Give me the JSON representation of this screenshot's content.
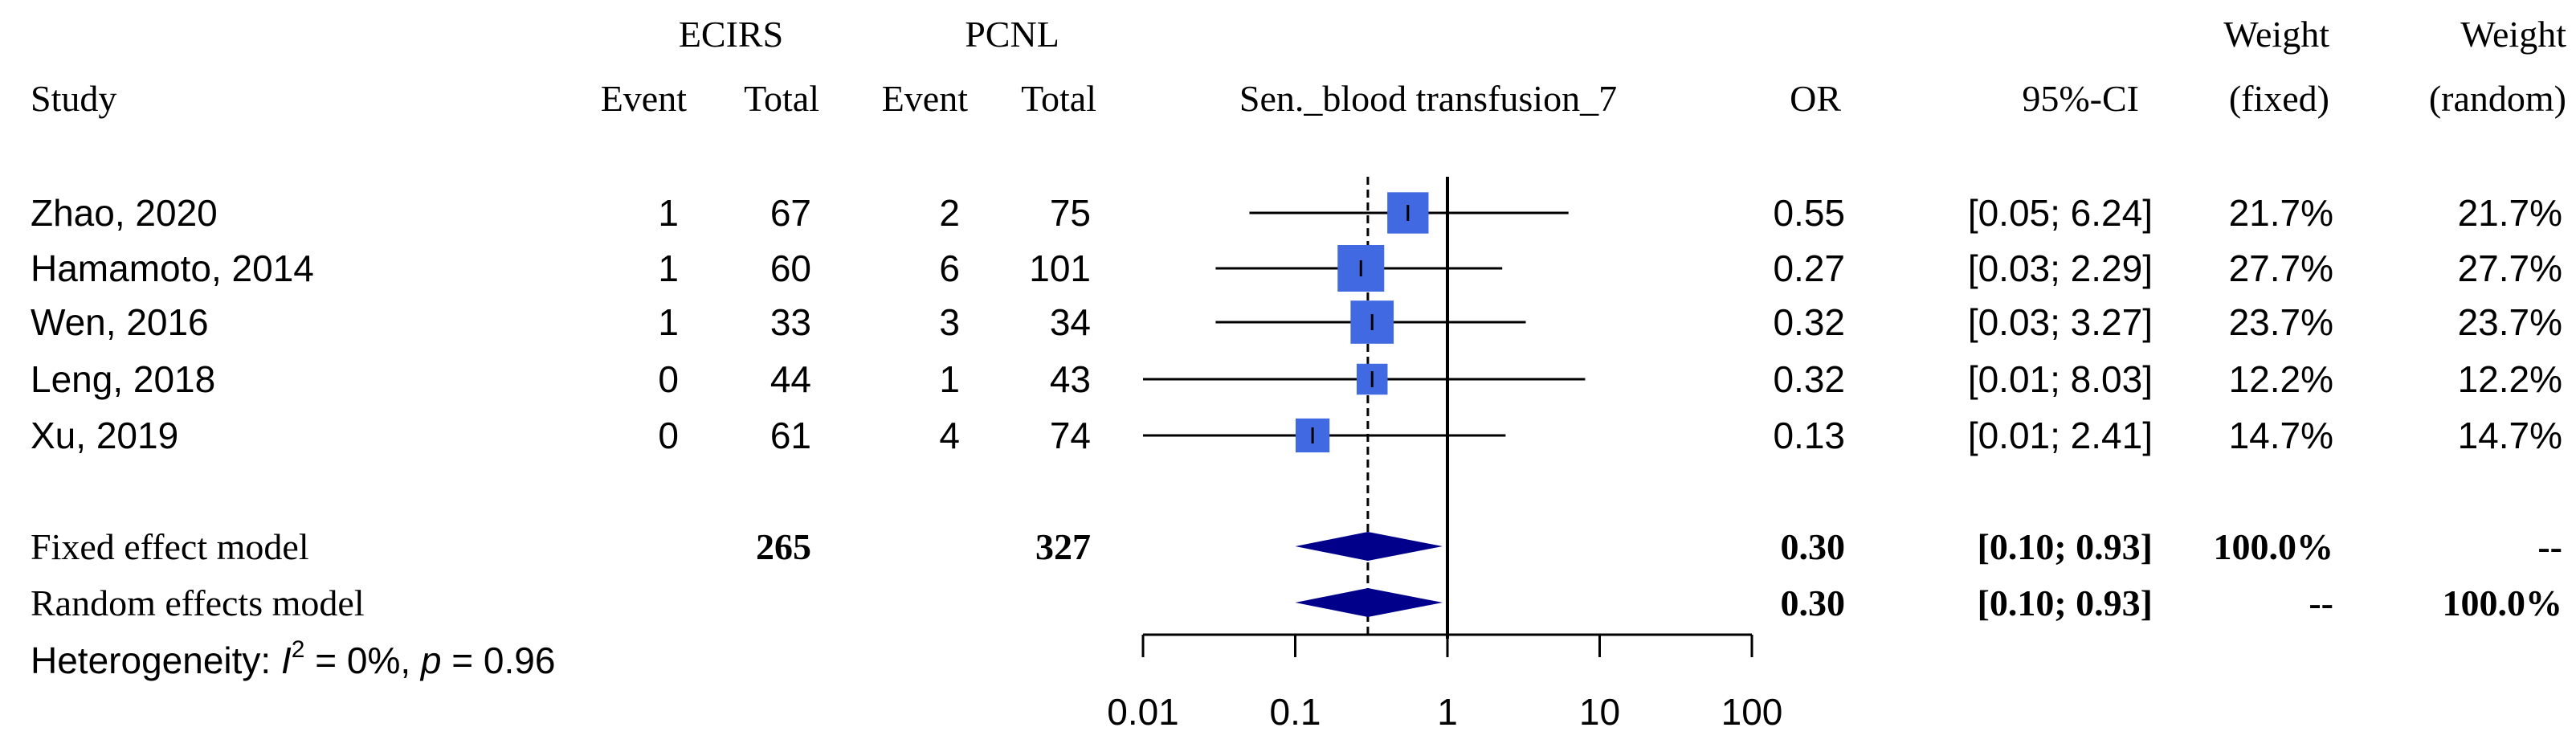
{
  "header": {
    "group1": "ECIRS",
    "group2": "PCNL",
    "study": "Study",
    "event": "Event",
    "total": "Total",
    "plot_title": "Sen._blood transfusion_7",
    "or": "OR",
    "ci": "95%-CI",
    "weight": "Weight",
    "fixed": "(fixed)",
    "random": "(random)"
  },
  "chart_data": {
    "type": "forest",
    "title": "Sen._blood transfusion_7",
    "x_scale": "log",
    "xlim": [
      0.01,
      100
    ],
    "ticks": [
      0.01,
      0.1,
      1,
      10,
      100
    ],
    "tick_labels": [
      "0.01",
      "0.1",
      "1",
      "10",
      "100"
    ],
    "null_line": 1,
    "studies": [
      {
        "study": "Zhao, 2020",
        "e1": "1",
        "n1": "67",
        "e2": "2",
        "n2": "75",
        "or": 0.55,
        "lower": 0.05,
        "upper": 6.24,
        "or_text": "0.55",
        "ci_text": "[0.05; 6.24]",
        "w_fixed": "21.7%",
        "w_random": "21.7%",
        "weight": 21.7
      },
      {
        "study": "Hamamoto, 2014",
        "e1": "1",
        "n1": "60",
        "e2": "6",
        "n2": "101",
        "or": 0.27,
        "lower": 0.03,
        "upper": 2.29,
        "or_text": "0.27",
        "ci_text": "[0.03; 2.29]",
        "w_fixed": "27.7%",
        "w_random": "27.7%",
        "weight": 27.7
      },
      {
        "study": "Wen, 2016",
        "e1": "1",
        "n1": "33",
        "e2": "3",
        "n2": "34",
        "or": 0.32,
        "lower": 0.03,
        "upper": 3.27,
        "or_text": "0.32",
        "ci_text": "[0.03; 3.27]",
        "w_fixed": "23.7%",
        "w_random": "23.7%",
        "weight": 23.7
      },
      {
        "study": "Leng, 2018",
        "e1": "0",
        "n1": "44",
        "e2": "1",
        "n2": "43",
        "or": 0.32,
        "lower": 0.01,
        "upper": 8.03,
        "or_text": "0.32",
        "ci_text": "[0.01; 8.03]",
        "w_fixed": "12.2%",
        "w_random": "12.2%",
        "weight": 12.2
      },
      {
        "study": "Xu, 2019",
        "e1": "0",
        "n1": "61",
        "e2": "4",
        "n2": "74",
        "or": 0.13,
        "lower": 0.01,
        "upper": 2.41,
        "or_text": "0.13",
        "ci_text": "[0.01; 2.41]",
        "w_fixed": "14.7%",
        "w_random": "14.7%",
        "weight": 14.7
      }
    ],
    "pooled": [
      {
        "label": "Fixed effect model",
        "total1": "265",
        "total2": "327",
        "or": 0.3,
        "lower": 0.1,
        "upper": 0.93,
        "or_text": "0.30",
        "ci_text": "[0.10; 0.93]",
        "w_fixed": "100.0%",
        "w_random": "--"
      },
      {
        "label": "Random effects model",
        "total1": "",
        "total2": "",
        "or": 0.3,
        "lower": 0.1,
        "upper": 0.93,
        "or_text": "0.30",
        "ci_text": "[0.10; 0.93]",
        "w_fixed": "--",
        "w_random": "100.0%"
      }
    ],
    "heterogeneity": {
      "prefix": "Heterogeneity: ",
      "i_letter": "I",
      "sup": "2",
      "i2_value": " = 0%, ",
      "p_letter": "p",
      "p_value": " = 0.96"
    },
    "colors": {
      "square": "#4169E1",
      "diamond": "#00008B",
      "line": "#000000"
    }
  }
}
